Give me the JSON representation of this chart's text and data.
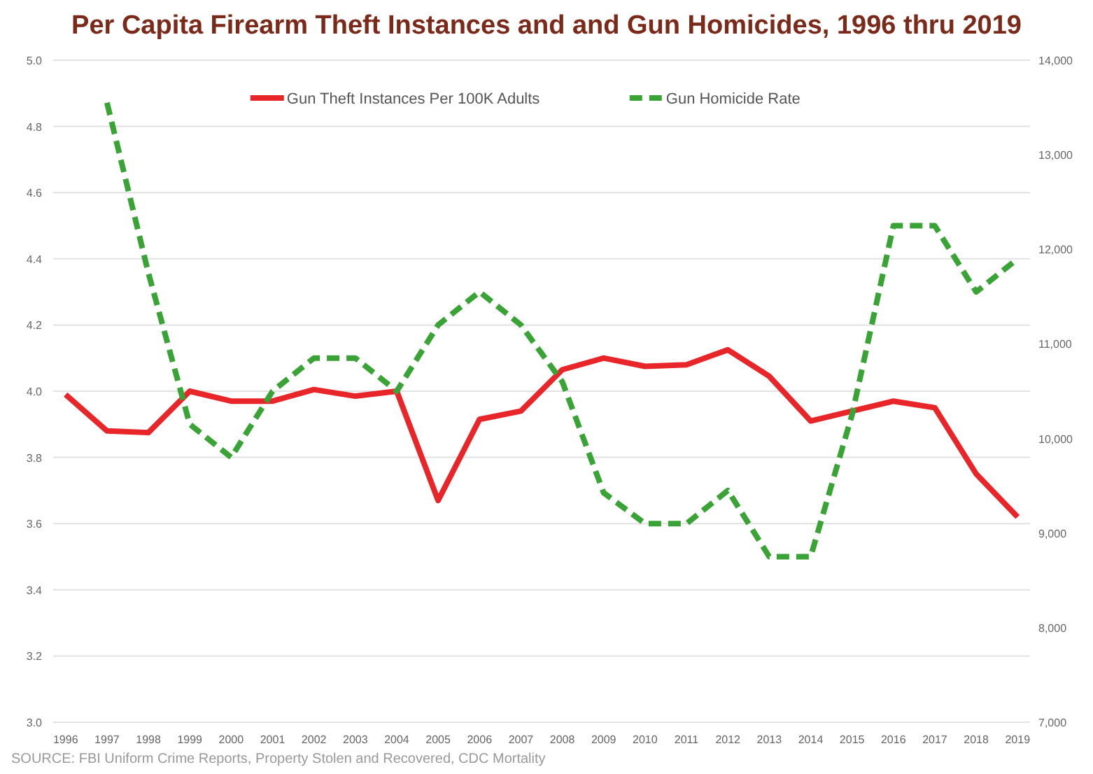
{
  "chart_data": {
    "type": "line",
    "title": "Per Capita Firearm Theft Instances and and Gun Homicides, 1996 thru 2019",
    "categories": [
      "1996",
      "1997",
      "1998",
      "1999",
      "2000",
      "2001",
      "2002",
      "2003",
      "2004",
      "2005",
      "2006",
      "2007",
      "2008",
      "2009",
      "2010",
      "2011",
      "2012",
      "2013",
      "2014",
      "2015",
      "2016",
      "2017",
      "2018",
      "2019"
    ],
    "series": [
      {
        "name": "Gun Theft Instances Per 100K Adults",
        "color": "#e8262a",
        "line_style": "solid",
        "values": [
          3.99,
          3.88,
          3.875,
          4.0,
          3.97,
          3.97,
          4.005,
          3.985,
          4.0,
          3.67,
          3.915,
          3.94,
          4.065,
          4.1,
          4.075,
          4.08,
          4.125,
          4.045,
          3.91,
          3.94,
          3.97,
          3.95,
          3.75,
          3.62
        ]
      },
      {
        "name": "Gun Homicide Rate",
        "color": "#3aa335",
        "line_style": "dashed",
        "axis": "y2",
        "values": [
          null,
          13550,
          11750,
          10150,
          9800,
          10500,
          10850,
          10850,
          10500,
          11200,
          11550,
          11200,
          10600,
          9425,
          9100,
          9100,
          9450,
          8750,
          8750,
          10250,
          12250,
          12250,
          11550,
          11900
        ]
      }
    ],
    "ylim": [
      3.0,
      5.0
    ],
    "yticks": [
      {
        "value": 3.0,
        "label": "3.0"
      },
      {
        "value": 3.2,
        "label": "3.2"
      },
      {
        "value": 3.4,
        "label": "3.4"
      },
      {
        "value": 3.6,
        "label": "3.6"
      },
      {
        "value": 3.8,
        "label": "3.8"
      },
      {
        "value": 4.0,
        "label": "4.0"
      },
      {
        "value": 4.2,
        "label": "4.2"
      },
      {
        "value": 4.4,
        "label": "4.4"
      },
      {
        "value": 4.6,
        "label": "4.6"
      },
      {
        "value": 4.8,
        "label": "4.8"
      },
      {
        "value": 5.0,
        "label": "5.0"
      }
    ],
    "y2lim": [
      7000,
      14000
    ],
    "y2ticks": [
      {
        "value": 7000,
        "label": "7,000"
      },
      {
        "value": 8000,
        "label": "8,000"
      },
      {
        "value": 9000,
        "label": "9,000"
      },
      {
        "value": 10000,
        "label": "10,000"
      },
      {
        "value": 11000,
        "label": "11,000"
      },
      {
        "value": 12000,
        "label": "12,000"
      },
      {
        "value": 13000,
        "label": "13,000"
      },
      {
        "value": 14000,
        "label": "14,000"
      }
    ],
    "grid": "y",
    "legend": "top",
    "marker": "none",
    "annotations": [
      "SOURCE: FBI Uniform Crime Reports, Property Stolen and Recovered, CDC Mortality"
    ]
  }
}
